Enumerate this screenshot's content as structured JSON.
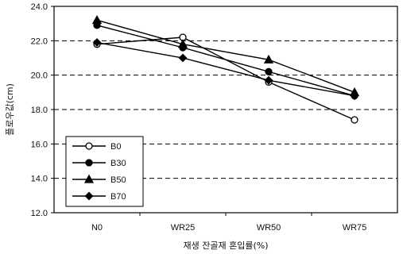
{
  "chart_data": {
    "type": "line",
    "xlabel": "재생 잔골재 혼입률(%)",
    "ylabel": "플로우값(cm)",
    "categories": [
      "N0",
      "WR25",
      "WR50",
      "WR75"
    ],
    "ylim": [
      12.0,
      24.0
    ],
    "yticks": [
      "12.0",
      "14.0",
      "16.0",
      "18.0",
      "20.0",
      "22.0",
      "24.0"
    ],
    "grid": "dashed horizontal",
    "legend_position": "bottom-left",
    "series": [
      {
        "name": "B0",
        "marker": "open-circle",
        "values": [
          21.8,
          22.2,
          19.6,
          17.4
        ]
      },
      {
        "name": "B30",
        "marker": "filled-circle",
        "values": [
          22.9,
          21.6,
          20.2,
          18.8
        ]
      },
      {
        "name": "B50",
        "marker": "triangle",
        "values": [
          23.2,
          21.8,
          20.9,
          19.0
        ]
      },
      {
        "name": "B70",
        "marker": "diamond",
        "values": [
          21.9,
          21.0,
          19.7,
          18.8
        ]
      }
    ]
  }
}
